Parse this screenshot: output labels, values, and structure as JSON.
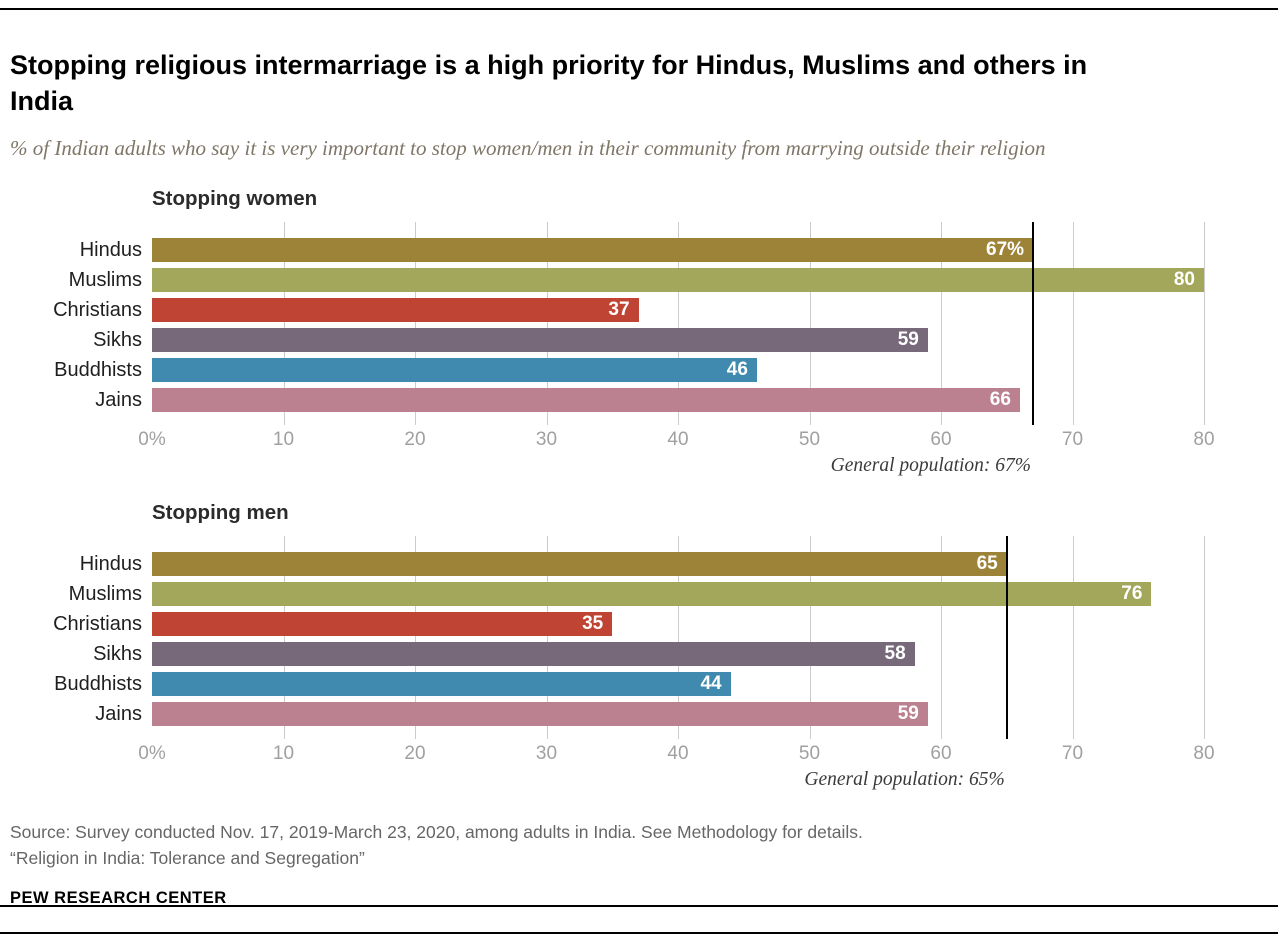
{
  "page": {
    "title": "Stopping religious intermarriage is a high priority for Hindus, Muslims and others in India",
    "subtitle": "% of Indian adults who say it is very important to stop women/men in their community from marrying outside their religion",
    "source_line1": "Source: Survey conducted Nov. 17, 2019-March 23, 2020, among adults in India. See Methodology for details.",
    "source_line2": "“Religion in India: Tolerance and Segregation”",
    "brand": "PEW RESEARCH CENTER"
  },
  "colors": {
    "hindus": "#9d8338",
    "muslims": "#a2a75c",
    "christians": "#c04433",
    "sikhs": "#77697a",
    "buddhists": "#3f8aae",
    "jains": "#bb8191",
    "reference_line": "#000000",
    "gridline": "#cccccc"
  },
  "chart_data": [
    {
      "type": "bar",
      "orientation": "horizontal",
      "title": "Stopping women",
      "categories": [
        "Hindus",
        "Muslims",
        "Christians",
        "Sikhs",
        "Buddhists",
        "Jains"
      ],
      "values": [
        67,
        80,
        37,
        59,
        46,
        66
      ],
      "value_labels": [
        "67%",
        "80",
        "37",
        "59",
        "46",
        "66"
      ],
      "bar_colors": [
        "#9d8338",
        "#a2a75c",
        "#c04433",
        "#77697a",
        "#3f8aae",
        "#bb8191"
      ],
      "xlim": [
        0,
        80
      ],
      "tick_values": [
        0,
        10,
        20,
        30,
        40,
        50,
        60,
        70,
        80
      ],
      "tick_labels": [
        "0%",
        "10",
        "20",
        "30",
        "40",
        "50",
        "60",
        "70",
        "80"
      ],
      "grid": true,
      "legend": "none",
      "reference_line": {
        "value": 67,
        "label": "General population: 67%"
      }
    },
    {
      "type": "bar",
      "orientation": "horizontal",
      "title": "Stopping men",
      "categories": [
        "Hindus",
        "Muslims",
        "Christians",
        "Sikhs",
        "Buddhists",
        "Jains"
      ],
      "values": [
        65,
        76,
        35,
        58,
        44,
        59
      ],
      "value_labels": [
        "65",
        "76",
        "35",
        "58",
        "44",
        "59"
      ],
      "bar_colors": [
        "#9d8338",
        "#a2a75c",
        "#c04433",
        "#77697a",
        "#3f8aae",
        "#bb8191"
      ],
      "xlim": [
        0,
        80
      ],
      "tick_values": [
        0,
        10,
        20,
        30,
        40,
        50,
        60,
        70,
        80
      ],
      "tick_labels": [
        "0%",
        "10",
        "20",
        "30",
        "40",
        "50",
        "60",
        "70",
        "80"
      ],
      "grid": true,
      "legend": "none",
      "reference_line": {
        "value": 65,
        "label": "General population: 65%"
      }
    }
  ]
}
